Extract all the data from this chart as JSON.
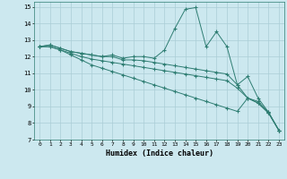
{
  "title": "",
  "xlabel": "Humidex (Indice chaleur)",
  "bg_color": "#cce8ef",
  "grid_color": "#aacdd6",
  "line_color": "#2e7d72",
  "xlim": [
    -0.5,
    23.5
  ],
  "ylim": [
    7,
    15.3
  ],
  "xticks": [
    0,
    1,
    2,
    3,
    4,
    5,
    6,
    7,
    8,
    9,
    10,
    11,
    12,
    13,
    14,
    15,
    16,
    17,
    18,
    19,
    20,
    21,
    22,
    23
  ],
  "yticks": [
    7,
    8,
    9,
    10,
    11,
    12,
    13,
    14,
    15
  ],
  "series": [
    [
      12.6,
      12.7,
      12.5,
      12.3,
      12.2,
      12.1,
      12.0,
      12.1,
      11.9,
      12.0,
      12.0,
      11.9,
      12.4,
      13.7,
      14.85,
      14.95,
      12.6,
      13.5,
      12.6,
      10.3,
      10.8,
      9.5,
      8.65,
      7.55
    ],
    [
      12.6,
      12.7,
      12.5,
      12.3,
      12.2,
      12.1,
      12.0,
      12.0,
      11.8,
      11.8,
      11.75,
      11.65,
      11.55,
      11.45,
      11.35,
      11.25,
      11.15,
      11.05,
      10.95,
      10.3,
      9.5,
      9.3,
      8.65,
      7.55
    ],
    [
      12.6,
      12.6,
      12.4,
      12.2,
      12.0,
      11.85,
      11.75,
      11.65,
      11.55,
      11.45,
      11.35,
      11.25,
      11.15,
      11.05,
      10.95,
      10.85,
      10.75,
      10.65,
      10.55,
      10.1,
      9.5,
      9.2,
      8.6,
      7.55
    ],
    [
      12.6,
      12.6,
      12.4,
      12.1,
      11.8,
      11.5,
      11.3,
      11.1,
      10.9,
      10.7,
      10.5,
      10.3,
      10.1,
      9.9,
      9.7,
      9.5,
      9.3,
      9.1,
      8.9,
      8.7,
      9.5,
      9.2,
      8.6,
      7.55
    ]
  ]
}
